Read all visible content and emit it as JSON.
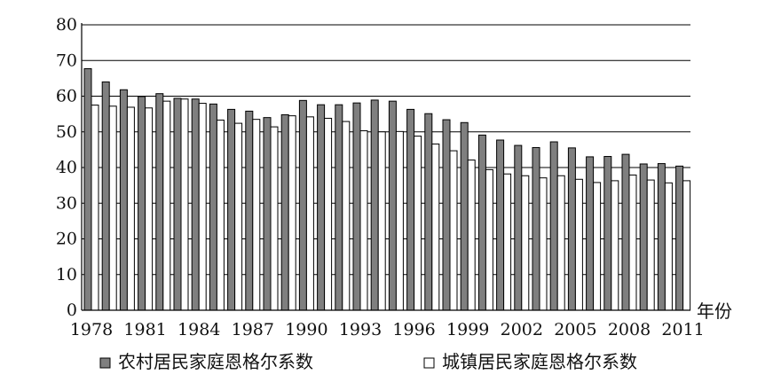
{
  "chart_data": {
    "type": "bar",
    "title": "",
    "xlabel": "年份",
    "ylabel": "",
    "ylim": [
      0,
      80
    ],
    "yticks": [
      0,
      10,
      20,
      30,
      40,
      50,
      60,
      70,
      80
    ],
    "grid": "horizontal",
    "legend_position": "bottom",
    "categories": [
      "1978",
      "1979",
      "1980",
      "1981",
      "1982",
      "1983",
      "1984",
      "1985",
      "1986",
      "1987",
      "1988",
      "1989",
      "1990",
      "1991",
      "1992",
      "1993",
      "1994",
      "1995",
      "1996",
      "1997",
      "1998",
      "1999",
      "2000",
      "2001",
      "2002",
      "2003",
      "2004",
      "2005",
      "2006",
      "2007",
      "2008",
      "2009",
      "2010",
      "2011"
    ],
    "xtick_labels": [
      "1978",
      "1981",
      "1984",
      "1987",
      "1990",
      "1993",
      "1996",
      "1999",
      "2002",
      "2005",
      "2008",
      "2011"
    ],
    "series": [
      {
        "name": "农村居民家庭恩格尔系数",
        "color": "#7f7f7f",
        "values": [
          67.7,
          64.0,
          61.8,
          59.9,
          60.7,
          59.4,
          59.2,
          57.8,
          56.3,
          55.8,
          54.0,
          54.8,
          58.8,
          57.6,
          57.6,
          58.1,
          58.9,
          58.6,
          56.3,
          55.1,
          53.4,
          52.6,
          49.1,
          47.7,
          46.2,
          45.6,
          47.2,
          45.5,
          43.0,
          43.1,
          43.7,
          41.0,
          41.1,
          40.4
        ]
      },
      {
        "name": "城镇居民家庭恩格尔系数",
        "color": "#ffffff",
        "values": [
          57.5,
          57.2,
          56.9,
          56.7,
          58.6,
          59.2,
          58.0,
          53.3,
          52.4,
          53.5,
          51.4,
          54.5,
          54.2,
          53.8,
          52.9,
          50.3,
          50.0,
          50.1,
          48.8,
          46.6,
          44.7,
          42.1,
          39.4,
          38.2,
          37.7,
          37.1,
          37.7,
          36.7,
          35.8,
          36.3,
          37.9,
          36.5,
          35.7,
          36.3
        ]
      }
    ]
  }
}
